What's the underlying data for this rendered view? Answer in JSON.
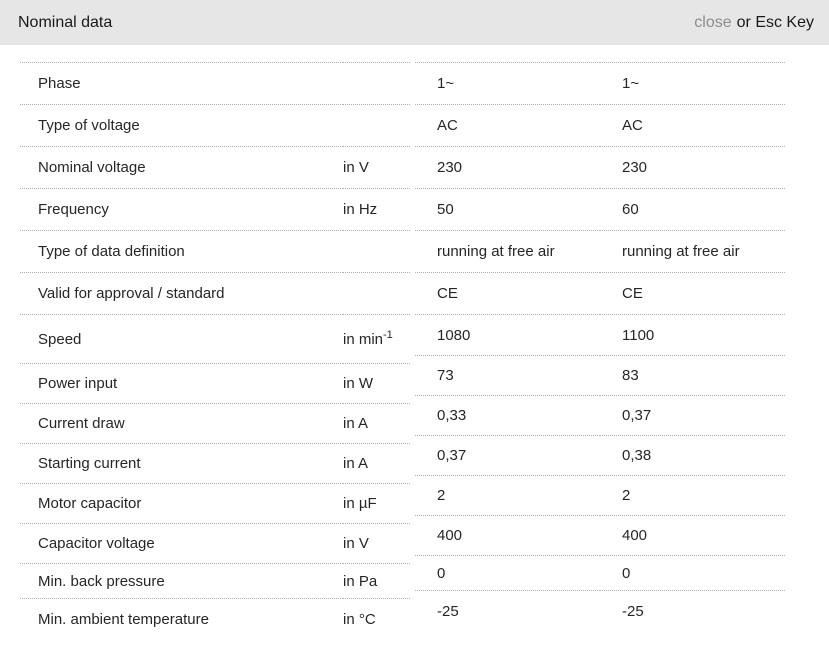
{
  "header": {
    "title": "Nominal data",
    "close_label": "close",
    "esc_hint": "or Esc Key"
  },
  "colors": {
    "header_bg": "#e6e6e6",
    "close_link": "#8c8c8c",
    "body_text": "#262626",
    "divider": "#b0b0b0"
  },
  "table": {
    "rows": [
      {
        "label": "Phase",
        "unit": "",
        "values": [
          "1~",
          "1~"
        ]
      },
      {
        "label": "Type of voltage",
        "unit": "",
        "values": [
          "AC",
          "AC"
        ]
      },
      {
        "label": "Nominal voltage",
        "unit": "in V",
        "values": [
          "230",
          "230"
        ]
      },
      {
        "label": "Frequency",
        "unit": "in Hz",
        "values": [
          "50",
          "60"
        ]
      },
      {
        "label": "Type of data definition",
        "unit": "",
        "values": [
          "running at free air",
          "running at free air"
        ]
      },
      {
        "label": "Valid for approval / standard",
        "unit": "",
        "values": [
          "CE",
          "CE"
        ]
      },
      {
        "label": "Speed",
        "unit": "in min",
        "unit_sup": "-1",
        "values": [
          "1080",
          "1100"
        ]
      },
      {
        "label": "Power input",
        "unit": "in W",
        "values": [
          "73",
          "83"
        ]
      },
      {
        "label": "Current draw",
        "unit": "in A",
        "values": [
          "0,33",
          "0,37"
        ]
      },
      {
        "label": "Starting current",
        "unit": "in A",
        "values": [
          "0,37",
          "0,38"
        ]
      },
      {
        "label": "Motor capacitor",
        "unit": "in µF",
        "values": [
          "2",
          "2"
        ]
      },
      {
        "label": "Capacitor voltage",
        "unit": "in V",
        "values": [
          "400",
          "400"
        ]
      },
      {
        "label": "Min. back pressure",
        "unit": "in Pa",
        "values": [
          "0",
          "0"
        ]
      },
      {
        "label": "Min. ambient temperature",
        "unit": "in °C",
        "values": [
          "-25",
          "-25"
        ]
      }
    ]
  }
}
